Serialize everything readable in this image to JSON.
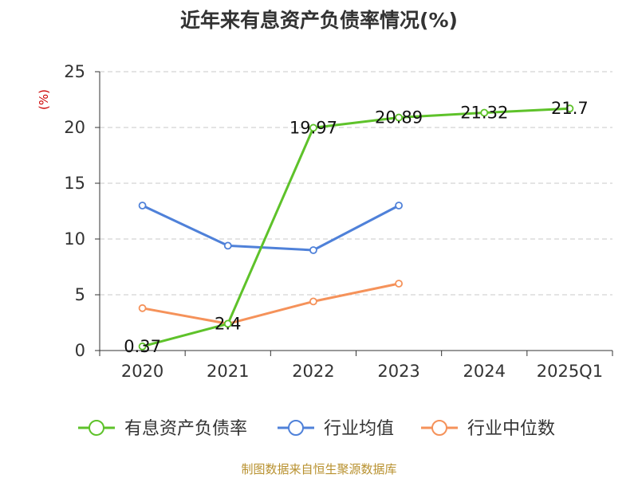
{
  "chart_data": {
    "type": "line",
    "title": "近年来有息资产负债率情况(%)",
    "ylabel": "(%)",
    "categories": [
      "2020",
      "2021",
      "2022",
      "2023",
      "2024",
      "2025Q1"
    ],
    "ylim": [
      0,
      25
    ],
    "yticks": [
      0,
      5,
      10,
      15,
      20,
      25
    ],
    "grid": true,
    "legend_position": "bottom",
    "series": [
      {
        "name": "有息资产负债率",
        "color": "#5ec22a",
        "values": [
          0.37,
          2.4,
          19.97,
          20.89,
          21.32,
          21.7
        ],
        "labels": [
          "0.37",
          "2.4",
          "19.97",
          "20.89",
          "21.32",
          "21.7"
        ]
      },
      {
        "name": "行业均值",
        "color": "#4f81d9",
        "values": [
          13.0,
          9.4,
          9.0,
          13.0,
          null,
          null
        ]
      },
      {
        "name": "行业中位数",
        "color": "#f5925a",
        "values": [
          3.8,
          2.4,
          4.4,
          6.0,
          null,
          null
        ]
      }
    ],
    "source": "制图数据来自恒生聚源数据库"
  }
}
